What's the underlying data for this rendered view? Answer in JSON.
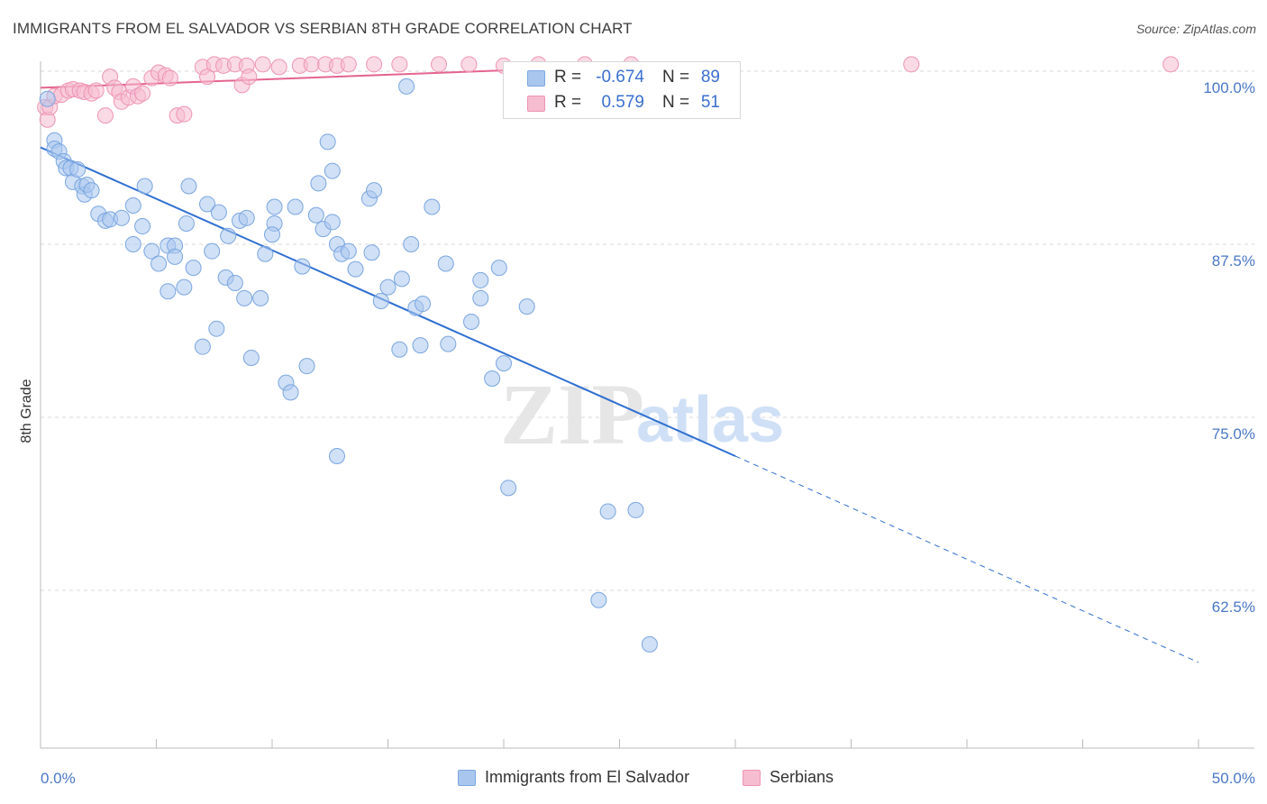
{
  "header": {
    "title": "IMMIGRANTS FROM EL SALVADOR VS SERBIAN 8TH GRADE CORRELATION CHART",
    "source": "Source: ZipAtlas.com"
  },
  "watermark": {
    "part1": "ZIP",
    "part2": "atlas"
  },
  "legend_top": {
    "rows": [
      {
        "r_label": "R =",
        "r_value": "-0.674",
        "n_label": "N =",
        "n_value": "89"
      },
      {
        "r_label": "R =",
        "r_value": "0.579",
        "n_label": "N =",
        "n_value": "51"
      }
    ]
  },
  "legend_bottom": {
    "items": [
      {
        "label": "Immigrants from El Salvador"
      },
      {
        "label": "Serbians"
      }
    ]
  },
  "colors": {
    "blue_fill": "#a9c6ee",
    "blue_stroke": "#7aa6e0",
    "blue_line": "#2f6fd0",
    "pink_fill": "#f6bcd0",
    "pink_stroke": "#ee94b4",
    "pink_line": "#e4648e",
    "grid": "#d9d9d9",
    "tick_text": "#4a78c6"
  },
  "chart_data": {
    "type": "scatter",
    "title": "IMMIGRANTS FROM EL SALVADOR VS SERBIAN 8TH GRADE CORRELATION CHART",
    "xlabel": "",
    "ylabel": "8th Grade",
    "xlim": [
      0,
      50
    ],
    "ylim": [
      55,
      100.5
    ],
    "x_tick_labels": [
      "0.0%",
      "50.0%"
    ],
    "y_ticks": [
      62.5,
      75.0,
      87.5,
      100.0
    ],
    "y_tick_labels": [
      "62.5%",
      "75.0%",
      "87.5%",
      "100.0%"
    ],
    "grid": true,
    "legend_placement": "top-center",
    "series": [
      {
        "name": "Immigrants from El Salvador",
        "color": "#a9c6ee",
        "r": -0.674,
        "n": 89,
        "trend": {
          "x0": 0,
          "y0": 94.5,
          "x1": 30,
          "y1": 72.2,
          "dashed_to_x": 50,
          "dashed_to_y": 57.3
        },
        "points": [
          [
            0.3,
            98.0
          ],
          [
            0.6,
            95.0
          ],
          [
            0.6,
            94.4
          ],
          [
            0.8,
            94.2
          ],
          [
            1.0,
            93.5
          ],
          [
            1.1,
            93.0
          ],
          [
            1.3,
            93.0
          ],
          [
            1.4,
            92.0
          ],
          [
            1.6,
            92.9
          ],
          [
            1.8,
            91.7
          ],
          [
            1.9,
            91.1
          ],
          [
            2.0,
            91.8
          ],
          [
            2.2,
            91.4
          ],
          [
            2.5,
            89.7
          ],
          [
            2.8,
            89.2
          ],
          [
            3.0,
            89.3
          ],
          [
            3.5,
            89.4
          ],
          [
            4.0,
            90.3
          ],
          [
            4.0,
            87.5
          ],
          [
            4.5,
            91.7
          ],
          [
            4.4,
            88.8
          ],
          [
            4.8,
            87.0
          ],
          [
            5.1,
            86.1
          ],
          [
            5.5,
            87.4
          ],
          [
            5.5,
            84.1
          ],
          [
            5.8,
            87.4
          ],
          [
            5.8,
            86.6
          ],
          [
            6.2,
            84.4
          ],
          [
            6.3,
            89.0
          ],
          [
            6.4,
            91.7
          ],
          [
            6.6,
            85.8
          ],
          [
            7.0,
            80.1
          ],
          [
            7.2,
            90.4
          ],
          [
            7.4,
            87.0
          ],
          [
            7.6,
            81.4
          ],
          [
            7.7,
            89.8
          ],
          [
            8.0,
            85.1
          ],
          [
            8.1,
            88.1
          ],
          [
            8.4,
            84.7
          ],
          [
            8.6,
            89.2
          ],
          [
            8.9,
            89.4
          ],
          [
            8.8,
            83.6
          ],
          [
            9.1,
            79.3
          ],
          [
            9.5,
            83.6
          ],
          [
            9.7,
            86.8
          ],
          [
            10.1,
            90.2
          ],
          [
            10.1,
            89.0
          ],
          [
            10.0,
            88.2
          ],
          [
            10.6,
            77.5
          ],
          [
            10.8,
            76.8
          ],
          [
            11.0,
            90.2
          ],
          [
            11.3,
            85.9
          ],
          [
            11.5,
            78.7
          ],
          [
            11.9,
            89.6
          ],
          [
            12.0,
            91.9
          ],
          [
            12.2,
            88.6
          ],
          [
            12.4,
            94.9
          ],
          [
            12.6,
            89.1
          ],
          [
            12.8,
            87.5
          ],
          [
            12.8,
            72.2
          ],
          [
            12.6,
            92.8
          ],
          [
            13.0,
            86.8
          ],
          [
            13.3,
            87.0
          ],
          [
            13.6,
            85.7
          ],
          [
            14.2,
            90.8
          ],
          [
            14.4,
            91.4
          ],
          [
            14.3,
            86.9
          ],
          [
            14.7,
            83.4
          ],
          [
            15.0,
            84.4
          ],
          [
            15.5,
            79.9
          ],
          [
            15.6,
            85.0
          ],
          [
            16.0,
            87.5
          ],
          [
            15.8,
            98.9
          ],
          [
            16.2,
            82.9
          ],
          [
            16.4,
            80.2
          ],
          [
            16.5,
            83.2
          ],
          [
            16.9,
            90.2
          ],
          [
            17.5,
            86.1
          ],
          [
            17.6,
            80.3
          ],
          [
            18.6,
            81.9
          ],
          [
            19.0,
            83.6
          ],
          [
            19.0,
            84.9
          ],
          [
            19.5,
            77.8
          ],
          [
            19.8,
            85.8
          ],
          [
            20.0,
            78.9
          ],
          [
            20.2,
            69.9
          ],
          [
            21.0,
            83.0
          ],
          [
            24.1,
            61.8
          ],
          [
            24.5,
            68.2
          ],
          [
            25.7,
            68.3
          ],
          [
            26.3,
            58.6
          ]
        ]
      },
      {
        "name": "Serbians",
        "color": "#f6bcd0",
        "r": 0.579,
        "n": 51,
        "trend": {
          "x0": 0,
          "y0": 98.8,
          "x1": 27,
          "y1": 100.5
        },
        "points": [
          [
            0.2,
            97.4
          ],
          [
            0.3,
            96.5
          ],
          [
            0.4,
            97.4
          ],
          [
            0.6,
            98.2
          ],
          [
            0.9,
            98.3
          ],
          [
            1.2,
            98.6
          ],
          [
            1.4,
            98.7
          ],
          [
            1.7,
            98.6
          ],
          [
            1.9,
            98.5
          ],
          [
            2.2,
            98.4
          ],
          [
            2.4,
            98.6
          ],
          [
            2.8,
            96.8
          ],
          [
            3.0,
            99.6
          ],
          [
            3.2,
            98.8
          ],
          [
            3.4,
            98.5
          ],
          [
            3.5,
            97.8
          ],
          [
            3.8,
            98.1
          ],
          [
            4.0,
            98.9
          ],
          [
            4.2,
            98.2
          ],
          [
            4.4,
            98.4
          ],
          [
            4.8,
            99.5
          ],
          [
            5.1,
            99.9
          ],
          [
            5.4,
            99.7
          ],
          [
            5.6,
            99.5
          ],
          [
            5.9,
            96.8
          ],
          [
            6.2,
            96.9
          ],
          [
            7.0,
            100.3
          ],
          [
            7.2,
            99.6
          ],
          [
            7.5,
            100.5
          ],
          [
            7.9,
            100.4
          ],
          [
            8.4,
            100.5
          ],
          [
            8.7,
            99.0
          ],
          [
            8.9,
            100.4
          ],
          [
            9.0,
            99.6
          ],
          [
            9.6,
            100.5
          ],
          [
            10.3,
            100.3
          ],
          [
            11.2,
            100.4
          ],
          [
            11.7,
            100.5
          ],
          [
            12.3,
            100.5
          ],
          [
            12.8,
            100.4
          ],
          [
            13.3,
            100.5
          ],
          [
            14.4,
            100.5
          ],
          [
            15.5,
            100.5
          ],
          [
            17.2,
            100.5
          ],
          [
            18.5,
            100.5
          ],
          [
            20.0,
            100.4
          ],
          [
            21.5,
            100.5
          ],
          [
            23.5,
            100.5
          ],
          [
            25.5,
            100.5
          ],
          [
            37.6,
            100.5
          ],
          [
            48.8,
            100.5
          ]
        ]
      }
    ]
  }
}
